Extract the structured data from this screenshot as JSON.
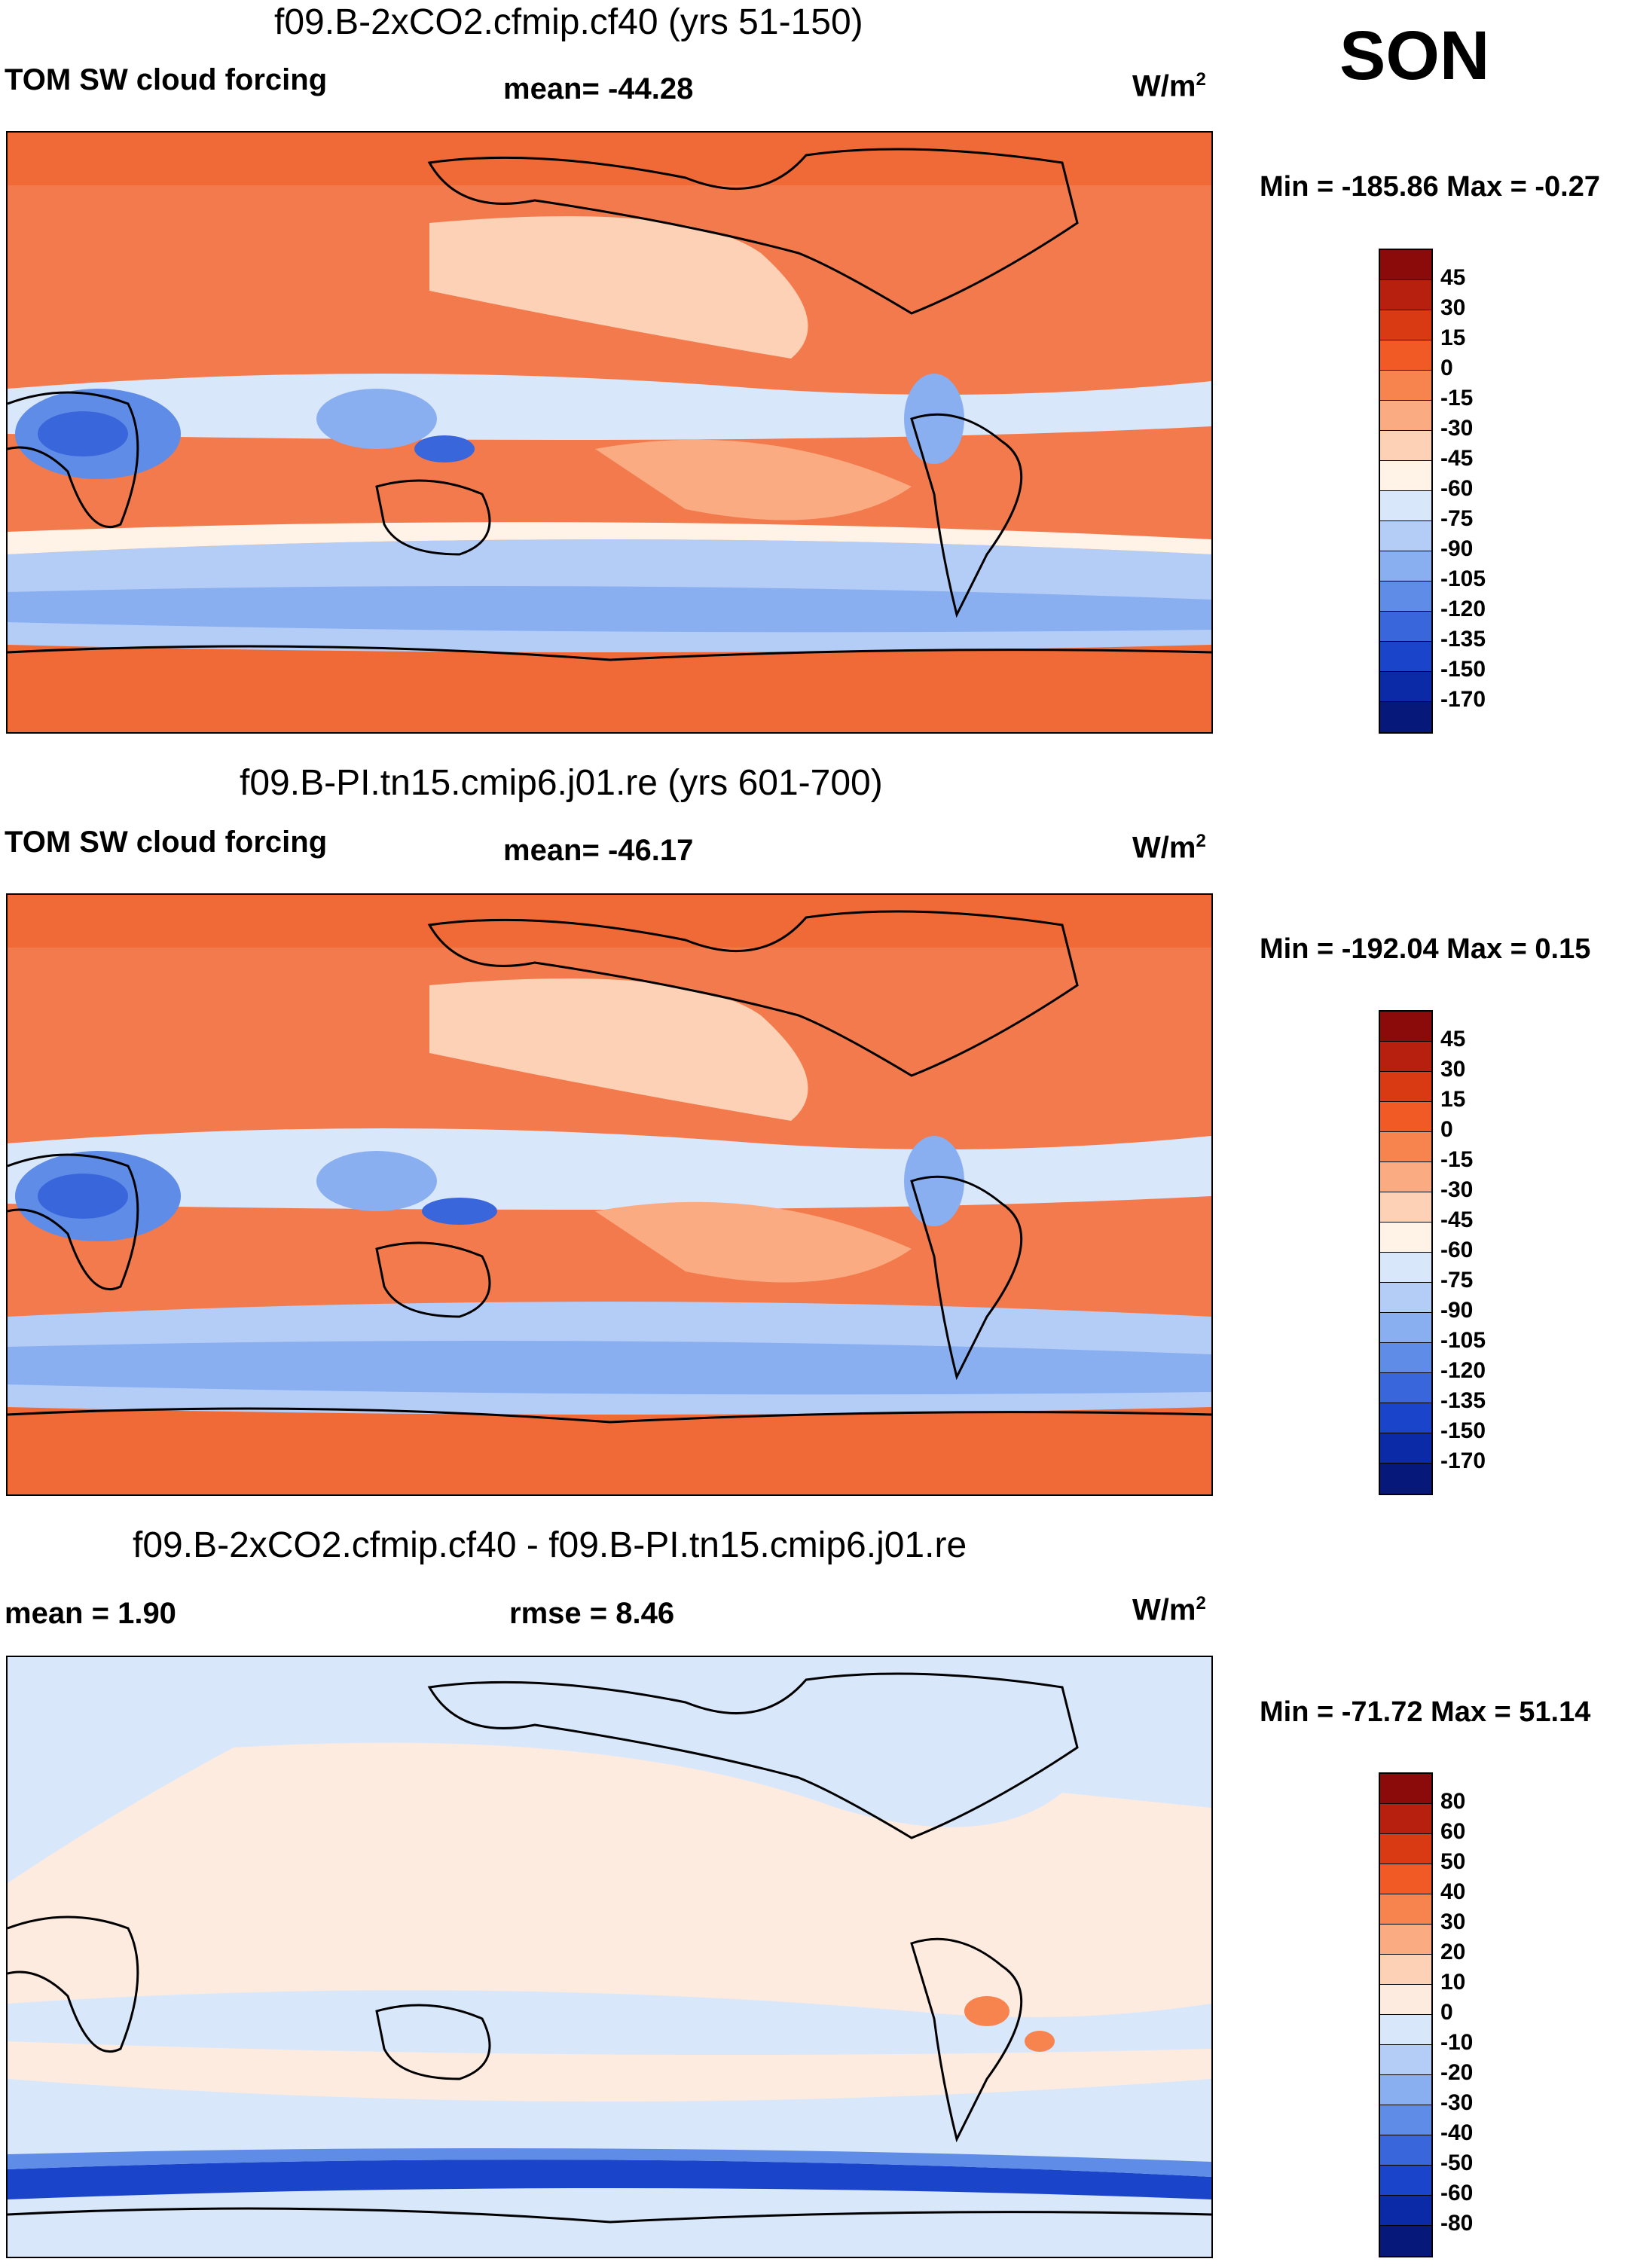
{
  "season": "SON",
  "panels": [
    {
      "title": "f09.B-2xCO2.cfmip.cf40 (yrs 51-150)",
      "left_label": "TOM SW cloud forcing",
      "center_label": "mean= -44.28",
      "units": "W/m",
      "units_sup": "2",
      "minmax": "Min = -185.86 Max =  -0.27",
      "levels": [
        "45",
        "30",
        "15",
        "0",
        "-15",
        "-30",
        "-45",
        "-60",
        "-75",
        "-90",
        "-105",
        "-120",
        "-135",
        "-150",
        "-170"
      ],
      "colors": [
        "#8b0a0a",
        "#b7200f",
        "#d93a14",
        "#f25a25",
        "#f7834f",
        "#fbab82",
        "#fdd1b5",
        "#fff2e6",
        "#d9e7fb",
        "#b3cdf7",
        "#8aaff0",
        "#5f8ce6",
        "#3a66db",
        "#1a44c9",
        "#0a2aa8",
        "#06187a"
      ],
      "map_base": "#f27a4c"
    },
    {
      "title": "f09.B-PI.tn15.cmip6.j01.re (yrs 601-700)",
      "left_label": "TOM SW cloud forcing",
      "center_label": "mean= -46.17",
      "units": "W/m",
      "units_sup": "2",
      "minmax": "Min = -192.04 Max =   0.15",
      "levels": [
        "45",
        "30",
        "15",
        "0",
        "-15",
        "-30",
        "-45",
        "-60",
        "-75",
        "-90",
        "-105",
        "-120",
        "-135",
        "-150",
        "-170"
      ],
      "colors": [
        "#8b0a0a",
        "#b7200f",
        "#d93a14",
        "#f25a25",
        "#f7834f",
        "#fbab82",
        "#fdd1b5",
        "#fff2e6",
        "#d9e7fb",
        "#b3cdf7",
        "#8aaff0",
        "#5f8ce6",
        "#3a66db",
        "#1a44c9",
        "#0a2aa8",
        "#06187a"
      ],
      "map_base": "#f27a4c"
    },
    {
      "title": "f09.B-2xCO2.cfmip.cf40 - f09.B-PI.tn15.cmip6.j01.re",
      "left_label": "mean =   1.90",
      "center_label": "rmse =   8.46",
      "units": "W/m",
      "units_sup": "2",
      "minmax": "Min = -71.72 Max =  51.14",
      "levels": [
        "80",
        "60",
        "50",
        "40",
        "30",
        "20",
        "10",
        "0",
        "-10",
        "-20",
        "-30",
        "-40",
        "-50",
        "-60",
        "-80"
      ],
      "colors": [
        "#8b0a0a",
        "#b7200f",
        "#d93a14",
        "#f25a25",
        "#f7834f",
        "#fbab82",
        "#fdd1b5",
        "#fdebe0",
        "#d9e7fb",
        "#b3cdf7",
        "#8aaff0",
        "#5f8ce6",
        "#3a66db",
        "#1a44c9",
        "#0a2aa8",
        "#06187a"
      ],
      "map_base": "#d6e6fa"
    }
  ]
}
